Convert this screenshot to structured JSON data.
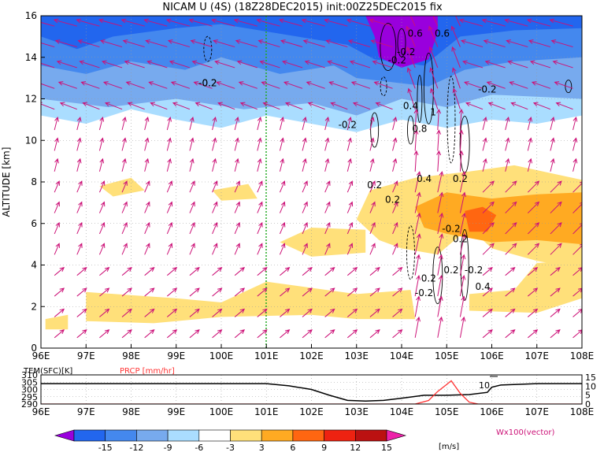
{
  "title": "NICAM U (4S) (18Z28DEC2015) init:00Z25DEC2015 fix",
  "main_panel": {
    "ylabel": "ALTITUDE [km]",
    "x_ticks": [
      "96E",
      "97E",
      "98E",
      "99E",
      "100E",
      "101E",
      "102E",
      "103E",
      "104E",
      "105E",
      "106E",
      "107E",
      "108E"
    ],
    "y_ticks": [
      "0",
      "2",
      "4",
      "6",
      "8",
      "10",
      "12",
      "14",
      "16"
    ],
    "contour_labels": [
      "-0.2",
      "0.6",
      "-0.2",
      "0.6",
      "-0.2",
      "0.4",
      "1",
      "-0.2",
      "-0.2",
      "0.8",
      "0.2",
      "0.4",
      "0.2",
      "0.2",
      "0.2",
      "-0.2",
      "0.2",
      "-0.2",
      "-0.2",
      "0.4",
      "0.2",
      "-0.2"
    ],
    "colors": {
      "vector": "#cc1177",
      "contour": "#000000",
      "marker_line": "#22aa22"
    }
  },
  "bottom_panel": {
    "tem_label": "TEM(SFC)[K]",
    "prcp_label": "PRCP [mm/hr]",
    "left_ticks": [
      "310",
      "305",
      "300",
      "295",
      "290"
    ],
    "right_ticks": [
      "15",
      "10",
      "5",
      "0"
    ],
    "annotation": "10",
    "colors": {
      "tem": "#000000",
      "prcp": "#ff3333"
    }
  },
  "colorbar": {
    "labels": [
      "-15",
      "-12",
      "-9",
      "-6",
      "-3",
      "3",
      "6",
      "9",
      "12",
      "15"
    ],
    "unit": "[m/s]",
    "vector_note": "Wx100(vector)",
    "colors": [
      "#9900dd",
      "#2266ee",
      "#4488ee",
      "#77aaee",
      "#aaddff",
      "#ffffff",
      "#ffe07a",
      "#ffaa22",
      "#ff6611",
      "#ee2211",
      "#bb1111",
      "#ee22aa"
    ]
  },
  "chart_data": [
    {
      "type": "heatmap",
      "title": "NICAM U (4S) (18Z28DEC2015) init:00Z25DEC2015 fix",
      "xlabel": "",
      "ylabel": "ALTITUDE [km]",
      "xlim": [
        96,
        108
      ],
      "ylim": [
        0,
        16
      ],
      "x_tick_values": [
        96,
        97,
        98,
        99,
        100,
        101,
        102,
        103,
        104,
        105,
        106,
        107,
        108
      ],
      "y_tick_values": [
        0,
        2,
        4,
        6,
        8,
        10,
        12,
        14,
        16
      ],
      "levels": [
        -15,
        -12,
        -9,
        -6,
        -3,
        3,
        6,
        9,
        12,
        15
      ],
      "regions": [
        {
          "lon": [
            96,
            108
          ],
          "alt": [
            10.5,
            16
          ],
          "value": -7
        },
        {
          "lon": [
            103,
            104.8
          ],
          "alt": [
            13.5,
            16
          ],
          "value": -16
        },
        {
          "lon": [
            96,
            101
          ],
          "alt": [
            13,
            16
          ],
          "value": -10
        },
        {
          "lon": [
            104.2,
            108
          ],
          "alt": [
            5,
            7.5
          ],
          "value": 7
        },
        {
          "lon": [
            105.3,
            106
          ],
          "alt": [
            5.5,
            6.7
          ],
          "value": 10
        },
        {
          "lon": [
            97,
            104.3
          ],
          "alt": [
            1.3,
            2.8
          ],
          "value": 4
        }
      ]
    },
    {
      "type": "line",
      "xlim": [
        96,
        108
      ],
      "series": [
        {
          "name": "TEM(SFC)[K]",
          "x": [
            96,
            100,
            101,
            101.5,
            102,
            102.4,
            102.8,
            103.2,
            103.6,
            104,
            104.5,
            105,
            105.5,
            105.9,
            106,
            106.2,
            107,
            108
          ],
          "y": [
            304,
            304,
            304,
            302.5,
            300,
            296,
            292.5,
            292,
            292.5,
            294,
            296,
            296,
            296.5,
            298,
            301.5,
            303,
            304,
            304
          ]
        },
        {
          "name": "PRCP [mm/hr]",
          "x": [
            96,
            104.3,
            104.6,
            104.8,
            105,
            105.1,
            105.3,
            105.5,
            105.7,
            108
          ],
          "y": [
            0,
            0,
            2,
            7,
            11,
            13,
            6,
            1,
            0,
            0
          ]
        }
      ]
    }
  ]
}
